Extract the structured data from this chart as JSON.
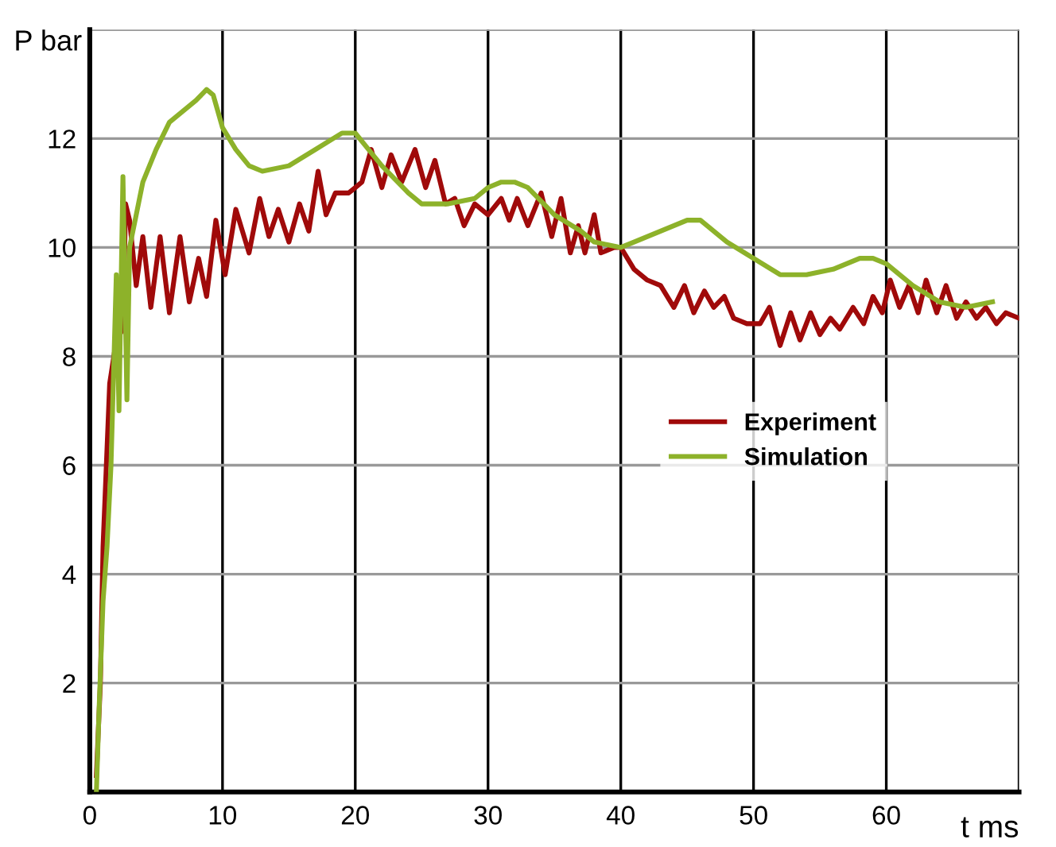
{
  "chart_data": {
    "type": "line",
    "xlabel": "t ms",
    "ylabel": "P bar",
    "xlim": [
      0,
      70
    ],
    "ylim": [
      0,
      14
    ],
    "xticks": [
      0,
      10,
      20,
      30,
      40,
      50,
      60,
      {
        "value": 70,
        "label": null
      }
    ],
    "yticks": [
      2,
      4,
      6,
      8,
      10,
      12,
      {
        "value": 14,
        "label": null
      }
    ],
    "grid": true,
    "legend": "right",
    "line_style": "solid",
    "series": [
      {
        "name": "Experiment",
        "color": "#a00a0a",
        "x": [
          0.5,
          0.8,
          1,
          1.5,
          2,
          2.5,
          2.7,
          3,
          3.5,
          4,
          4.6,
          5.3,
          6,
          6.8,
          7.5,
          8.2,
          8.8,
          9.5,
          10.2,
          11,
          12,
          12.8,
          13.5,
          14.2,
          15,
          15.8,
          16.5,
          17.2,
          17.8,
          18.5,
          19.5,
          20,
          20.5,
          21.2,
          22,
          22.7,
          23.5,
          24.5,
          25.3,
          26,
          26.8,
          27.5,
          28.2,
          29,
          30,
          31,
          31.6,
          32.2,
          33,
          34,
          34.8,
          35.5,
          36.2,
          36.8,
          37.3,
          38,
          38.5,
          39.5,
          40,
          41,
          42,
          43,
          44,
          44.8,
          45.5,
          46.3,
          47,
          47.8,
          48.5,
          49.5,
          50.5,
          51.2,
          52,
          52.8,
          53.5,
          54.3,
          55,
          55.8,
          56.5,
          57.5,
          58.3,
          59,
          59.7,
          60.3,
          61,
          61.7,
          62.4,
          63,
          63.8,
          64.5,
          65.3,
          66,
          66.8,
          67.5,
          68.3,
          69,
          70
        ],
        "values": [
          0.3,
          2,
          4.5,
          7.5,
          8.3,
          8.5,
          10.8,
          10.5,
          9.3,
          10.2,
          8.9,
          10.2,
          8.8,
          10.2,
          9.0,
          9.8,
          9.1,
          10.5,
          9.5,
          10.7,
          9.9,
          10.9,
          10.2,
          10.7,
          10.1,
          10.8,
          10.3,
          11.4,
          10.6,
          11.0,
          11.0,
          11.1,
          11.2,
          11.8,
          11.1,
          11.7,
          11.2,
          11.8,
          11.1,
          11.6,
          10.8,
          10.9,
          10.4,
          10.8,
          10.6,
          10.9,
          10.5,
          10.9,
          10.4,
          11.0,
          10.2,
          10.9,
          9.9,
          10.4,
          9.9,
          10.6,
          9.9,
          10.0,
          10.0,
          9.6,
          9.4,
          9.3,
          8.9,
          9.3,
          8.8,
          9.2,
          8.9,
          9.1,
          8.7,
          8.6,
          8.6,
          8.9,
          8.2,
          8.8,
          8.3,
          8.8,
          8.4,
          8.7,
          8.5,
          8.9,
          8.6,
          9.1,
          8.8,
          9.4,
          8.9,
          9.3,
          8.8,
          9.4,
          8.8,
          9.3,
          8.7,
          9.0,
          8.7,
          8.9,
          8.6,
          8.8,
          8.7
        ]
      },
      {
        "name": "Simulation",
        "color": "#8db22a",
        "x": [
          0.5,
          0.7,
          1,
          1.3,
          1.6,
          2,
          2.2,
          2.5,
          2.8,
          3,
          3.5,
          4,
          5,
          6,
          7,
          8,
          8.8,
          9.3,
          10,
          11,
          12,
          13,
          15,
          17,
          19,
          20,
          21,
          22,
          24,
          25,
          27,
          29,
          30,
          31,
          32,
          33,
          35,
          37,
          38,
          40,
          41,
          43,
          45,
          46,
          48,
          50,
          52,
          54,
          56,
          58,
          59,
          60,
          62,
          64,
          66,
          68
        ],
        "values": [
          0,
          1.5,
          3.5,
          4.5,
          6,
          9.5,
          7,
          11.3,
          7.2,
          10,
          10.6,
          11.2,
          11.8,
          12.3,
          12.5,
          12.7,
          12.9,
          12.8,
          12.2,
          11.8,
          11.5,
          11.4,
          11.5,
          11.8,
          12.1,
          12.1,
          11.8,
          11.5,
          11.0,
          10.8,
          10.8,
          10.9,
          11.1,
          11.2,
          11.2,
          11.1,
          10.6,
          10.3,
          10.1,
          10.0,
          10.1,
          10.3,
          10.5,
          10.5,
          10.1,
          9.8,
          9.5,
          9.5,
          9.6,
          9.8,
          9.8,
          9.7,
          9.3,
          9.0,
          8.9,
          9.0
        ]
      }
    ]
  }
}
